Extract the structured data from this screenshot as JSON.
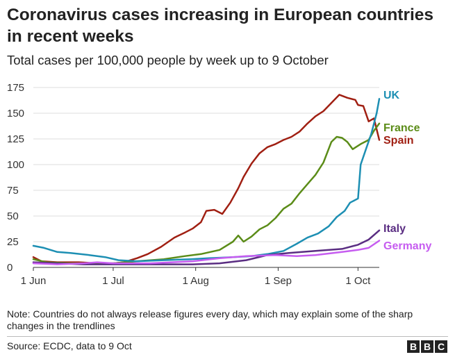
{
  "title": "Coronavirus cases increasing in European countries in recent weeks",
  "subtitle": "Total cases per 100,000 people by week up to 9 October",
  "note": "Note: Countries do not always release figures every day, which may explain some of the sharp changes in the trendlines",
  "source": "Source: ECDC, data to 9 Oct",
  "logo": [
    "B",
    "B",
    "C"
  ],
  "chart_data": {
    "type": "line",
    "title": "Coronavirus cases increasing in European countries in recent weeks",
    "subtitle": "Total cases per 100,000 people by week up to 9 October",
    "xlabel": "",
    "ylabel": "",
    "x_range": [
      "2020-06-01",
      "2020-10-09"
    ],
    "ylim": [
      0,
      175
    ],
    "yticks": [
      0,
      25,
      50,
      75,
      100,
      125,
      150,
      175
    ],
    "xticks": [
      {
        "date": "2020-06-01",
        "label": "1 Jun"
      },
      {
        "date": "2020-07-01",
        "label": "1 Jul"
      },
      {
        "date": "2020-08-01",
        "label": "1 Aug"
      },
      {
        "date": "2020-09-01",
        "label": "1 Sep"
      },
      {
        "date": "2020-10-01",
        "label": "1 Oct"
      }
    ],
    "grid": true,
    "legend": "labels at line ends, right",
    "series": [
      {
        "name": "Spain",
        "color": "#a01f12",
        "points": [
          [
            "2020-06-01",
            10
          ],
          [
            "2020-06-04",
            6
          ],
          [
            "2020-06-10",
            5
          ],
          [
            "2020-06-18",
            5
          ],
          [
            "2020-06-25",
            4
          ],
          [
            "2020-07-01",
            4
          ],
          [
            "2020-07-05",
            5
          ],
          [
            "2020-07-10",
            9
          ],
          [
            "2020-07-14",
            13
          ],
          [
            "2020-07-19",
            20
          ],
          [
            "2020-07-24",
            29
          ],
          [
            "2020-07-28",
            34
          ],
          [
            "2020-07-31",
            38
          ],
          [
            "2020-08-03",
            44
          ],
          [
            "2020-08-05",
            55
          ],
          [
            "2020-08-08",
            56
          ],
          [
            "2020-08-11",
            52
          ],
          [
            "2020-08-14",
            63
          ],
          [
            "2020-08-17",
            77
          ],
          [
            "2020-08-19",
            88
          ],
          [
            "2020-08-22",
            101
          ],
          [
            "2020-08-25",
            111
          ],
          [
            "2020-08-28",
            117
          ],
          [
            "2020-08-31",
            120
          ],
          [
            "2020-09-03",
            124
          ],
          [
            "2020-09-06",
            127
          ],
          [
            "2020-09-09",
            132
          ],
          [
            "2020-09-12",
            140
          ],
          [
            "2020-09-15",
            147
          ],
          [
            "2020-09-18",
            152
          ],
          [
            "2020-09-21",
            160
          ],
          [
            "2020-09-24",
            168
          ],
          [
            "2020-09-27",
            165
          ],
          [
            "2020-09-30",
            163
          ],
          [
            "2020-10-01",
            158
          ],
          [
            "2020-10-03",
            157
          ],
          [
            "2020-10-05",
            142
          ],
          [
            "2020-10-07",
            145
          ],
          [
            "2020-10-09",
            124
          ]
        ]
      },
      {
        "name": "France",
        "color": "#5b8c18",
        "points": [
          [
            "2020-06-01",
            8
          ],
          [
            "2020-06-06",
            5
          ],
          [
            "2020-06-15",
            4
          ],
          [
            "2020-06-25",
            4
          ],
          [
            "2020-07-01",
            4
          ],
          [
            "2020-07-10",
            6
          ],
          [
            "2020-07-20",
            8
          ],
          [
            "2020-07-28",
            11
          ],
          [
            "2020-08-03",
            13
          ],
          [
            "2020-08-10",
            17
          ],
          [
            "2020-08-15",
            25
          ],
          [
            "2020-08-17",
            31
          ],
          [
            "2020-08-19",
            25
          ],
          [
            "2020-08-22",
            30
          ],
          [
            "2020-08-25",
            37
          ],
          [
            "2020-08-28",
            41
          ],
          [
            "2020-08-31",
            48
          ],
          [
            "2020-09-03",
            57
          ],
          [
            "2020-09-06",
            62
          ],
          [
            "2020-09-09",
            72
          ],
          [
            "2020-09-12",
            81
          ],
          [
            "2020-09-15",
            90
          ],
          [
            "2020-09-18",
            102
          ],
          [
            "2020-09-21",
            122
          ],
          [
            "2020-09-23",
            127
          ],
          [
            "2020-09-25",
            126
          ],
          [
            "2020-09-27",
            122
          ],
          [
            "2020-09-29",
            115
          ],
          [
            "2020-10-02",
            120
          ],
          [
            "2020-10-05",
            124
          ],
          [
            "2020-10-07",
            133
          ],
          [
            "2020-10-09",
            140
          ]
        ]
      },
      {
        "name": "UK",
        "color": "#1d8fb3",
        "points": [
          [
            "2020-06-01",
            21
          ],
          [
            "2020-06-05",
            19
          ],
          [
            "2020-06-10",
            15
          ],
          [
            "2020-06-15",
            14
          ],
          [
            "2020-06-22",
            12
          ],
          [
            "2020-06-28",
            10
          ],
          [
            "2020-07-03",
            7
          ],
          [
            "2020-07-10",
            6
          ],
          [
            "2020-07-20",
            7
          ],
          [
            "2020-07-30",
            8
          ],
          [
            "2020-08-06",
            9
          ],
          [
            "2020-08-15",
            10
          ],
          [
            "2020-08-22",
            11
          ],
          [
            "2020-08-28",
            13
          ],
          [
            "2020-09-03",
            16
          ],
          [
            "2020-09-08",
            23
          ],
          [
            "2020-09-12",
            29
          ],
          [
            "2020-09-16",
            33
          ],
          [
            "2020-09-20",
            40
          ],
          [
            "2020-09-23",
            49
          ],
          [
            "2020-09-26",
            55
          ],
          [
            "2020-09-28",
            63
          ],
          [
            "2020-10-01",
            67
          ],
          [
            "2020-10-02",
            100
          ],
          [
            "2020-10-04",
            115
          ],
          [
            "2020-10-06",
            130
          ],
          [
            "2020-10-08",
            150
          ],
          [
            "2020-10-09",
            164
          ]
        ]
      },
      {
        "name": "Italy",
        "color": "#5a2d82",
        "points": [
          [
            "2020-06-01",
            5
          ],
          [
            "2020-06-10",
            4
          ],
          [
            "2020-06-20",
            3
          ],
          [
            "2020-07-01",
            3
          ],
          [
            "2020-07-15",
            3
          ],
          [
            "2020-07-31",
            3
          ],
          [
            "2020-08-10",
            4
          ],
          [
            "2020-08-20",
            7
          ],
          [
            "2020-08-28",
            12
          ],
          [
            "2020-09-05",
            14
          ],
          [
            "2020-09-15",
            16
          ],
          [
            "2020-09-25",
            18
          ],
          [
            "2020-10-01",
            22
          ],
          [
            "2020-10-05",
            27
          ],
          [
            "2020-10-09",
            36
          ]
        ]
      },
      {
        "name": "Germany",
        "color": "#c65cf0",
        "points": [
          [
            "2020-06-01",
            4
          ],
          [
            "2020-06-10",
            3
          ],
          [
            "2020-06-20",
            4
          ],
          [
            "2020-06-25",
            5
          ],
          [
            "2020-07-01",
            4
          ],
          [
            "2020-07-15",
            4
          ],
          [
            "2020-07-31",
            6
          ],
          [
            "2020-08-10",
            9
          ],
          [
            "2020-08-20",
            11
          ],
          [
            "2020-08-31",
            12
          ],
          [
            "2020-09-08",
            11
          ],
          [
            "2020-09-15",
            12
          ],
          [
            "2020-09-25",
            15
          ],
          [
            "2020-10-01",
            17
          ],
          [
            "2020-10-05",
            19
          ],
          [
            "2020-10-09",
            26
          ]
        ]
      }
    ]
  }
}
